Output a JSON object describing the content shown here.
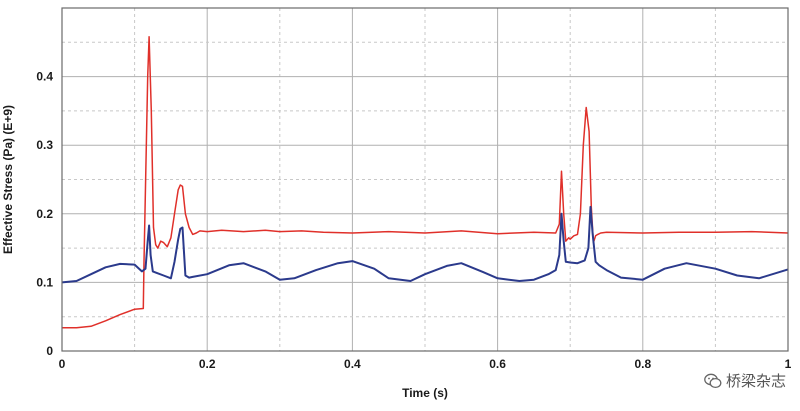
{
  "chart_data": {
    "type": "line",
    "title": "",
    "xlabel": "Time (s)",
    "ylabel": "Effective Stress (Pa) (E+9)",
    "xlim": [
      0,
      1
    ],
    "ylim": [
      0,
      0.5
    ],
    "x_ticks": [
      0,
      0.2,
      0.4,
      0.6,
      0.8,
      1
    ],
    "x_tick_labels": [
      "0",
      "0.2",
      "0.4",
      "0.6",
      "0.8",
      "1"
    ],
    "y_ticks": [
      0,
      0.1,
      0.2,
      0.3,
      0.4
    ],
    "y_tick_labels": [
      "0",
      "0.1",
      "0.2",
      "0.3",
      "0.4"
    ],
    "grid": true,
    "legend": "none",
    "series": [
      {
        "color": "#e0302a",
        "x": [
          0,
          0.02,
          0.03,
          0.04,
          0.06,
          0.08,
          0.1,
          0.112,
          0.113,
          0.115,
          0.118,
          0.12,
          0.123,
          0.126,
          0.129,
          0.132,
          0.136,
          0.14,
          0.145,
          0.15,
          0.155,
          0.16,
          0.163,
          0.166,
          0.17,
          0.175,
          0.18,
          0.185,
          0.19,
          0.2,
          0.22,
          0.25,
          0.28,
          0.3,
          0.33,
          0.36,
          0.4,
          0.45,
          0.5,
          0.55,
          0.6,
          0.65,
          0.68,
          0.685,
          0.688,
          0.691,
          0.694,
          0.698,
          0.7,
          0.705,
          0.71,
          0.714,
          0.718,
          0.722,
          0.726,
          0.729,
          0.732,
          0.735,
          0.738,
          0.742,
          0.75,
          0.8,
          0.85,
          0.9,
          0.95,
          1.0
        ],
        "y": [
          0.034,
          0.034,
          0.035,
          0.036,
          0.044,
          0.053,
          0.061,
          0.062,
          0.13,
          0.24,
          0.4,
          0.458,
          0.35,
          0.18,
          0.155,
          0.15,
          0.16,
          0.158,
          0.152,
          0.165,
          0.2,
          0.235,
          0.242,
          0.24,
          0.2,
          0.18,
          0.17,
          0.172,
          0.175,
          0.174,
          0.176,
          0.174,
          0.176,
          0.174,
          0.175,
          0.173,
          0.172,
          0.174,
          0.172,
          0.175,
          0.171,
          0.173,
          0.172,
          0.185,
          0.262,
          0.2,
          0.16,
          0.165,
          0.163,
          0.168,
          0.17,
          0.2,
          0.3,
          0.355,
          0.32,
          0.21,
          0.158,
          0.168,
          0.17,
          0.172,
          0.173,
          0.172,
          0.173,
          0.173,
          0.174,
          0.172
        ]
      },
      {
        "color": "#2b3a8c",
        "x": [
          0,
          0.02,
          0.04,
          0.06,
          0.08,
          0.1,
          0.11,
          0.115,
          0.118,
          0.12,
          0.122,
          0.125,
          0.13,
          0.14,
          0.15,
          0.155,
          0.16,
          0.163,
          0.166,
          0.17,
          0.175,
          0.18,
          0.2,
          0.23,
          0.25,
          0.28,
          0.3,
          0.32,
          0.35,
          0.38,
          0.4,
          0.43,
          0.45,
          0.48,
          0.5,
          0.53,
          0.55,
          0.58,
          0.6,
          0.63,
          0.65,
          0.67,
          0.68,
          0.685,
          0.688,
          0.691,
          0.694,
          0.7,
          0.71,
          0.72,
          0.725,
          0.728,
          0.731,
          0.735,
          0.74,
          0.75,
          0.77,
          0.8,
          0.83,
          0.86,
          0.9,
          0.93,
          0.96,
          1.0
        ],
        "y": [
          0.1,
          0.102,
          0.112,
          0.122,
          0.127,
          0.126,
          0.116,
          0.12,
          0.16,
          0.183,
          0.14,
          0.116,
          0.114,
          0.11,
          0.106,
          0.13,
          0.163,
          0.178,
          0.18,
          0.11,
          0.107,
          0.108,
          0.112,
          0.125,
          0.128,
          0.116,
          0.104,
          0.106,
          0.118,
          0.128,
          0.131,
          0.12,
          0.106,
          0.102,
          0.112,
          0.124,
          0.128,
          0.115,
          0.106,
          0.102,
          0.104,
          0.112,
          0.118,
          0.14,
          0.2,
          0.16,
          0.13,
          0.129,
          0.128,
          0.132,
          0.15,
          0.21,
          0.17,
          0.13,
          0.125,
          0.118,
          0.107,
          0.104,
          0.12,
          0.128,
          0.12,
          0.11,
          0.106,
          0.119
        ]
      }
    ]
  },
  "watermark": {
    "text": "桥梁杂志",
    "icon": "wechat-icon"
  }
}
